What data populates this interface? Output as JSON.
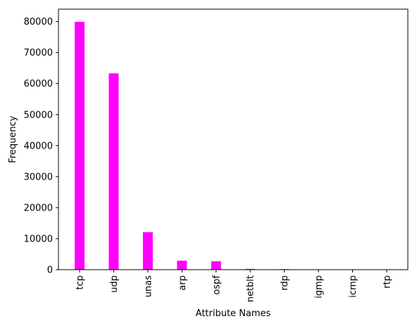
{
  "chart_data": {
    "type": "bar",
    "title": "",
    "xlabel": "Attribute Names",
    "ylabel": "Frequency",
    "categories": [
      "tcp",
      "udp",
      "unas",
      "arp",
      "ospf",
      "netblt",
      "rdp",
      "igmp",
      "icmp",
      "rtp"
    ],
    "values": [
      79900,
      63300,
      12100,
      2900,
      2700,
      250,
      180,
      60,
      40,
      30
    ],
    "ylim": [
      0,
      84000
    ],
    "yticks": [
      0,
      10000,
      20000,
      30000,
      40000,
      50000,
      60000,
      70000,
      80000
    ],
    "bar_color": "#ff00ff",
    "grid": false,
    "legend": "none"
  }
}
